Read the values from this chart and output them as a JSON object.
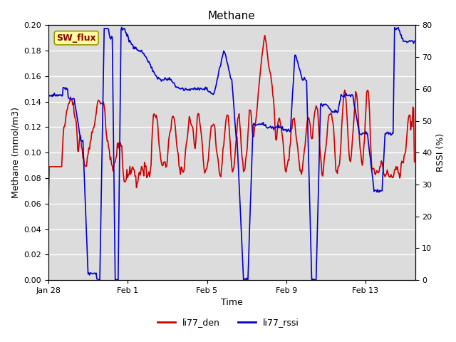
{
  "title": "Methane",
  "ylabel_left": "Methane (mmol/m3)",
  "ylabel_right": "RSSI (%)",
  "xlabel": "Time",
  "legend_label_red": "li77_den",
  "legend_label_blue": "li77_rssi",
  "box_label": "SW_flux",
  "ylim_left": [
    0.0,
    0.2
  ],
  "ylim_right": [
    0,
    80
  ],
  "yticks_left": [
    0.0,
    0.02,
    0.04,
    0.06,
    0.08,
    0.1,
    0.12,
    0.14,
    0.16,
    0.18,
    0.2
  ],
  "yticks_right": [
    0,
    10,
    20,
    30,
    40,
    50,
    60,
    70,
    80
  ],
  "xtick_labels": [
    "Jan 28",
    "Feb 1",
    "Feb 5",
    "Feb 9",
    "Feb 13"
  ],
  "bg_color": "#dcdcdc",
  "red_color": "#cc0000",
  "blue_color": "#0000cc",
  "line_width": 1.2
}
